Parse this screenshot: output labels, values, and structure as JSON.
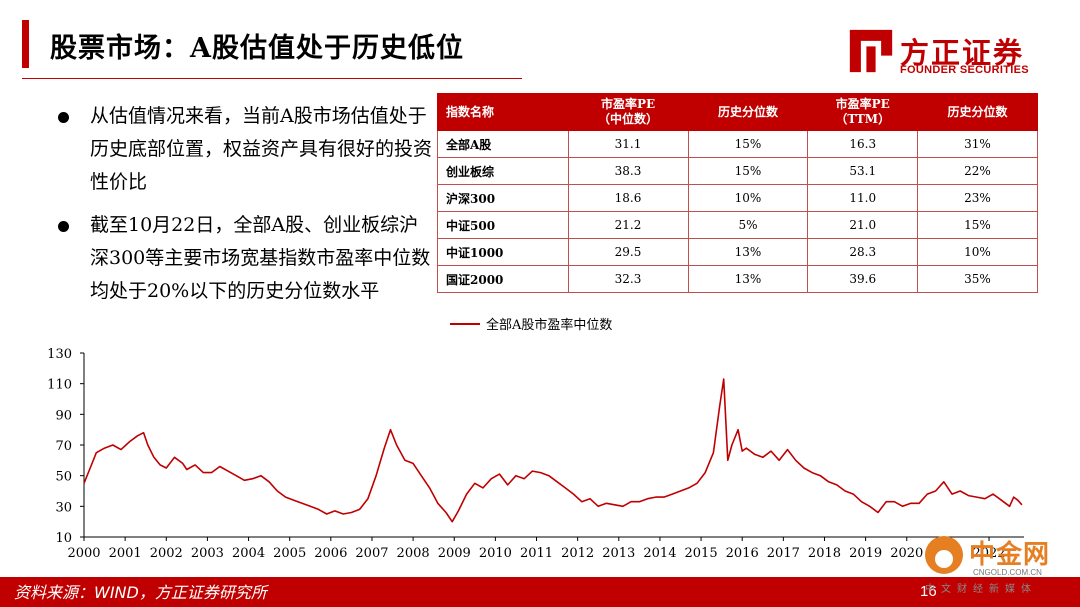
{
  "header": {
    "title": "股票市场：A股估值处于历史低位",
    "brand_name": "方正证券",
    "brand_sub": "FOUNDER SECURITIES"
  },
  "bullets": [
    "从估值情况来看，当前A股市场估值处于历史底部位置，权益资产具有很好的投资性价比",
    "截至10月22日，全部A股、创业板综沪深300等主要市场宽基指数市盈率中位数均处于20%以下的历史分位数水平"
  ],
  "table": {
    "headers": [
      [
        "指数名称"
      ],
      [
        "市盈率PE",
        "（中位数）"
      ],
      [
        "历史分位数"
      ],
      [
        "市盈率PE",
        "（TTM）"
      ],
      [
        "历史分位数"
      ]
    ],
    "rows": [
      [
        "全部A股",
        "31.1",
        "15%",
        "16.3",
        "31%"
      ],
      [
        "创业板综",
        "38.3",
        "15%",
        "53.1",
        "22%"
      ],
      [
        "沪深300",
        "18.6",
        "10%",
        "11.0",
        "23%"
      ],
      [
        "中证500",
        "21.2",
        "5%",
        "21.0",
        "15%"
      ],
      [
        "中证1000",
        "29.5",
        "13%",
        "28.3",
        "10%"
      ],
      [
        "国证2000",
        "32.3",
        "13%",
        "39.6",
        "35%"
      ]
    ]
  },
  "chart_data": {
    "type": "line",
    "title": "",
    "xlabel": "",
    "ylabel": "",
    "ylim": [
      10,
      130
    ],
    "yticks": [
      10,
      30,
      50,
      70,
      90,
      110,
      130
    ],
    "xlim": [
      2000,
      2022.85
    ],
    "xticks": [
      "2000",
      "2001",
      "2002",
      "2003",
      "2004",
      "2005",
      "2006",
      "2007",
      "2008",
      "2009",
      "2010",
      "2011",
      "2012",
      "2013",
      "2014",
      "2015",
      "2016",
      "2017",
      "2018",
      "2019",
      "2020",
      "2021",
      "2022"
    ],
    "legend_position": "top",
    "color": "#c00000",
    "series": [
      {
        "name": "全部A股市盈率中位数",
        "x": [
          2000.0,
          2000.15,
          2000.3,
          2000.5,
          2000.7,
          2000.9,
          2001.1,
          2001.3,
          2001.45,
          2001.55,
          2001.7,
          2001.85,
          2002.0,
          2002.2,
          2002.4,
          2002.5,
          2002.7,
          2002.9,
          2003.1,
          2003.3,
          2003.5,
          2003.7,
          2003.9,
          2004.1,
          2004.3,
          2004.5,
          2004.7,
          2004.9,
          2005.1,
          2005.3,
          2005.5,
          2005.7,
          2005.9,
          2006.1,
          2006.3,
          2006.5,
          2006.7,
          2006.9,
          2007.1,
          2007.3,
          2007.45,
          2007.6,
          2007.8,
          2008.0,
          2008.2,
          2008.4,
          2008.6,
          2008.8,
          2008.95,
          2009.1,
          2009.3,
          2009.5,
          2009.7,
          2009.9,
          2010.1,
          2010.3,
          2010.5,
          2010.7,
          2010.9,
          2011.1,
          2011.3,
          2011.5,
          2011.7,
          2011.9,
          2012.1,
          2012.3,
          2012.5,
          2012.7,
          2012.9,
          2013.1,
          2013.3,
          2013.5,
          2013.7,
          2013.9,
          2014.1,
          2014.3,
          2014.5,
          2014.7,
          2014.9,
          2015.1,
          2015.3,
          2015.45,
          2015.55,
          2015.65,
          2015.75,
          2015.9,
          2016.0,
          2016.1,
          2016.3,
          2016.5,
          2016.7,
          2016.9,
          2017.1,
          2017.3,
          2017.5,
          2017.7,
          2017.9,
          2018.1,
          2018.3,
          2018.5,
          2018.7,
          2018.9,
          2019.1,
          2019.3,
          2019.5,
          2019.7,
          2019.9,
          2020.1,
          2020.3,
          2020.5,
          2020.7,
          2020.9,
          2021.1,
          2021.3,
          2021.5,
          2021.7,
          2021.9,
          2022.1,
          2022.3,
          2022.5,
          2022.6,
          2022.7,
          2022.8
        ],
        "values": [
          45,
          55,
          65,
          68,
          70,
          67,
          72,
          76,
          78,
          70,
          62,
          57,
          55,
          62,
          58,
          54,
          57,
          52,
          52,
          56,
          53,
          50,
          47,
          48,
          50,
          46,
          40,
          36,
          34,
          32,
          30,
          28,
          25,
          27,
          25,
          26,
          28,
          35,
          50,
          68,
          80,
          70,
          60,
          58,
          50,
          42,
          32,
          26,
          20,
          27,
          38,
          45,
          42,
          48,
          51,
          44,
          50,
          48,
          53,
          52,
          50,
          46,
          42,
          38,
          33,
          35,
          30,
          32,
          31,
          30,
          33,
          33,
          35,
          36,
          36,
          38,
          40,
          42,
          45,
          52,
          65,
          95,
          113,
          60,
          70,
          80,
          66,
          68,
          64,
          62,
          66,
          60,
          67,
          60,
          55,
          52,
          50,
          46,
          44,
          40,
          38,
          33,
          30,
          26,
          33,
          33,
          30,
          32,
          32,
          38,
          40,
          46,
          38,
          40,
          37,
          36,
          35,
          38,
          34,
          30,
          36,
          34,
          31
        ]
      }
    ]
  },
  "footer": {
    "source": "资料来源：WIND，方正证券研究所",
    "page": "16"
  },
  "watermark": {
    "name": "中金网",
    "url": "CNGOLD.COM.CN",
    "sub": "中文财经新媒体"
  }
}
